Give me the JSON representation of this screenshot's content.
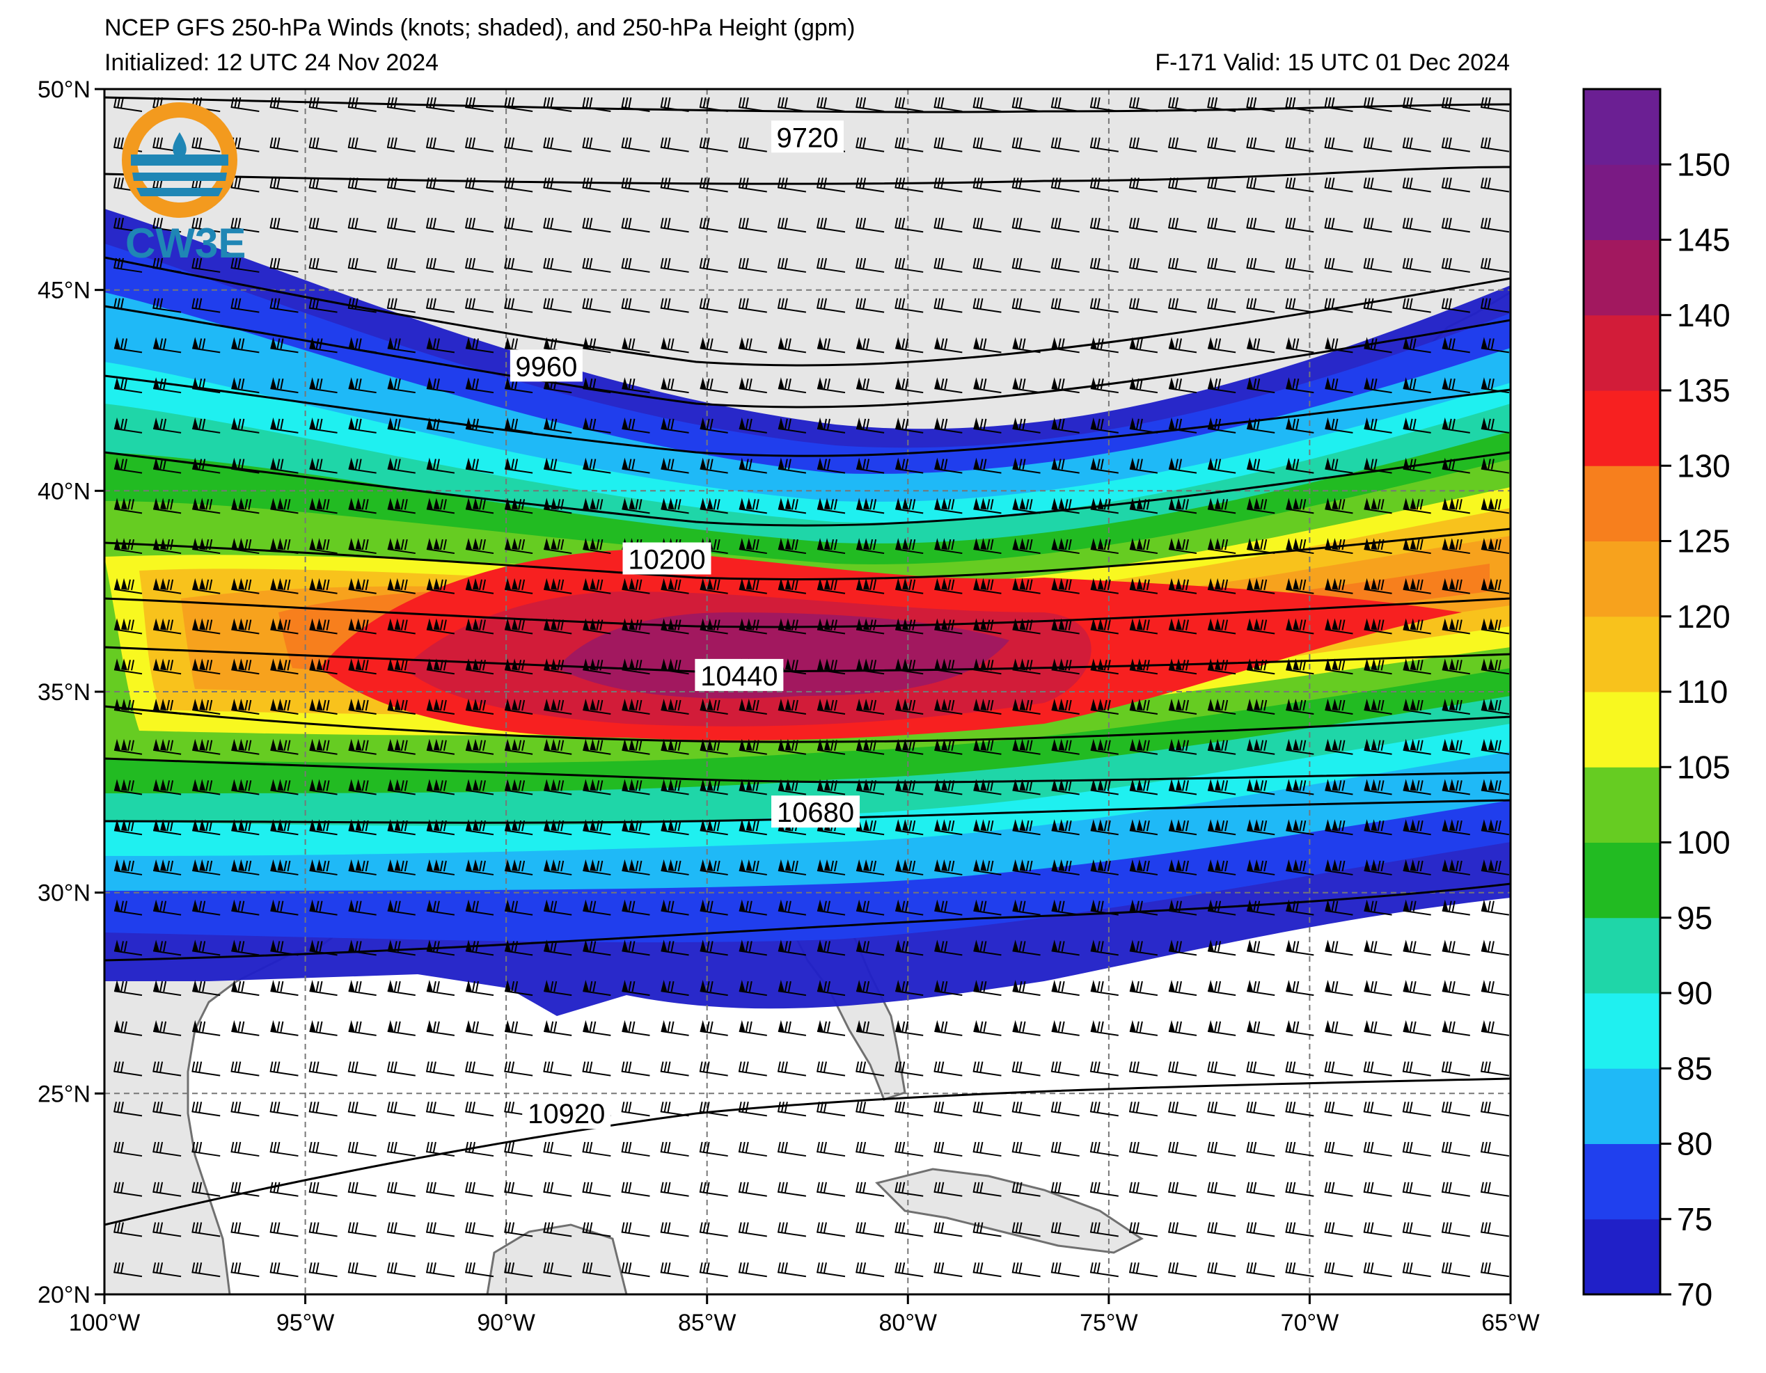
{
  "header": {
    "title": "NCEP GFS 250-hPa Winds (knots; shaded), and 250-hPa Height (gpm)",
    "initialized": "Initialized: 12 UTC 24 Nov 2024",
    "valid": "F-171  Valid: 15 UTC 01 Dec 2024"
  },
  "logo": {
    "text": "CW3E",
    "colors": {
      "ring": "#f39a1e",
      "waves": "#1f86b5"
    }
  },
  "map": {
    "lon_range": [
      -100,
      -65
    ],
    "lat_range": [
      20,
      50
    ],
    "lon_ticks": [
      {
        "value": -100,
        "label": "100°W"
      },
      {
        "value": -95,
        "label": "95°W"
      },
      {
        "value": -90,
        "label": "90°W"
      },
      {
        "value": -85,
        "label": "85°W"
      },
      {
        "value": -80,
        "label": "80°W"
      },
      {
        "value": -75,
        "label": "75°W"
      },
      {
        "value": -70,
        "label": "70°W"
      },
      {
        "value": -65,
        "label": "65°W"
      }
    ],
    "lat_ticks": [
      {
        "value": 20,
        "label": "20°N"
      },
      {
        "value": 25,
        "label": "25°N"
      },
      {
        "value": 30,
        "label": "30°N"
      },
      {
        "value": 35,
        "label": "35°N"
      },
      {
        "value": 40,
        "label": "40°N"
      },
      {
        "value": 45,
        "label": "45°N"
      },
      {
        "value": 50,
        "label": "50°N"
      }
    ],
    "gridlines": true,
    "jet_core_lat_west": 35.5,
    "jet_core_lat_east": 35.0
  },
  "height_contours": [
    {
      "value": 9720,
      "label": "9720",
      "label_lon": -82.5,
      "label_lat": 48.8
    },
    {
      "value": 9960,
      "label": "9960",
      "label_lon": -89.0,
      "label_lat": 43.1
    },
    {
      "value": 10200,
      "label": "10200",
      "label_lon": -86.0,
      "label_lat": 38.3
    },
    {
      "value": 10440,
      "label": "10440",
      "label_lon": -84.2,
      "label_lat": 35.4
    },
    {
      "value": 10680,
      "label": "10680",
      "label_lon": -82.3,
      "label_lat": 32.0
    },
    {
      "value": 10920,
      "label": "10920",
      "label_lon": -88.5,
      "label_lat": 24.5
    }
  ],
  "colorbar": {
    "levels": [
      70,
      75,
      80,
      85,
      90,
      95,
      100,
      105,
      110,
      120,
      125,
      130,
      135,
      140,
      145,
      150
    ],
    "colors": [
      "#2020c8",
      "#2040ee",
      "#1fb9f7",
      "#1ff0f0",
      "#1fd6a8",
      "#22bb22",
      "#66cc22",
      "#f8f820",
      "#f8c21c",
      "#f7a21d",
      "#f77f1d",
      "#f72020",
      "#d21c39",
      "#a2185f",
      "#7a1a84",
      "#6b1f93"
    ],
    "labels": [
      "70",
      "75",
      "80",
      "85",
      "90",
      "95",
      "100",
      "105",
      "110",
      "120",
      "125",
      "130",
      "135",
      "140",
      "145",
      "150"
    ]
  }
}
